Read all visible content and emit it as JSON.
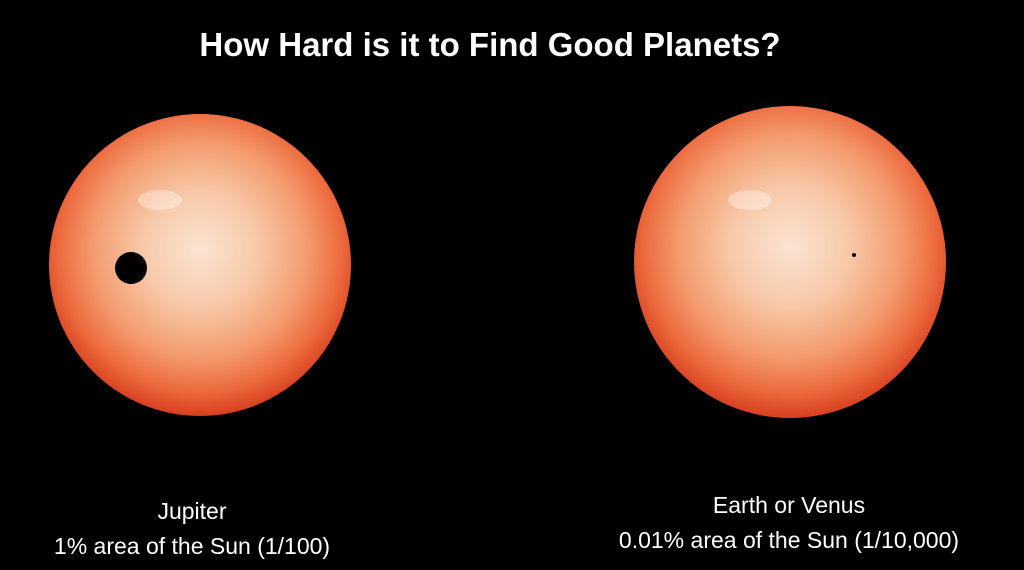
{
  "title": "How Hard is it to Find Good Planets?",
  "panels": [
    {
      "label": "Jupiter",
      "caption": "1% area of the Sun (1/100)"
    },
    {
      "label": "Earth or Venus",
      "caption": "0.01% area of the Sun (1/10,000)"
    }
  ]
}
